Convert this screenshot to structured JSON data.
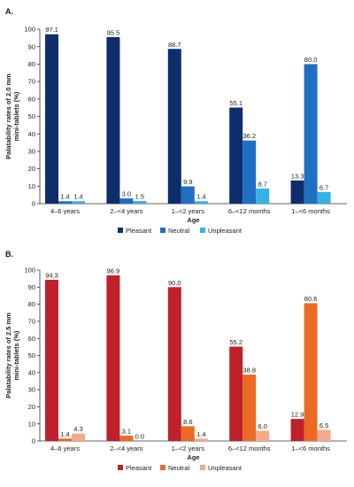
{
  "chart_data": [
    {
      "type": "bar",
      "panel_label": "A.",
      "categories": [
        "4–6 years",
        "2–<4 years",
        "1–<2 years",
        "6–<12 months",
        "1–<6 months"
      ],
      "series": [
        {
          "name": "Pleasant",
          "values": [
            97.1,
            95.5,
            88.7,
            55.1,
            13.3
          ],
          "color": "#0d2d6b"
        },
        {
          "name": "Neutral",
          "values": [
            1.4,
            3.0,
            9.9,
            36.2,
            80.0
          ],
          "color": "#1f6fc4"
        },
        {
          "name": "Unpleasant",
          "values": [
            1.4,
            1.5,
            1.4,
            8.7,
            6.7
          ],
          "color": "#35b1e6"
        }
      ],
      "value_labels": [
        [
          "97.1",
          "95.5",
          "88.7",
          "55.1",
          "13.3"
        ],
        [
          "1.4",
          "3.0",
          "9.9",
          "36.2",
          "80.0"
        ],
        [
          "1.4",
          "1.5",
          "1.4",
          "8.7",
          "6.7"
        ]
      ],
      "xlabel": "Age",
      "ylabel_lines": [
        "Palatability rates of 2.0 mm",
        "mini-tablets (%)"
      ],
      "ylim": [
        0,
        100
      ],
      "yticks": [
        "0",
        "10",
        "20",
        "30",
        "40",
        "50",
        "60",
        "70",
        "80",
        "90",
        "100"
      ],
      "grid": false,
      "legend_position": "bottom-center"
    },
    {
      "type": "bar",
      "panel_label": "B.",
      "categories": [
        "4–6 years",
        "2–<4 years",
        "1–<2 years",
        "6–<12 months",
        "1–<6 months"
      ],
      "series": [
        {
          "name": "Pleasant",
          "values": [
            94.3,
            96.9,
            90.0,
            55.2,
            12.9
          ],
          "color": "#c0202a"
        },
        {
          "name": "Neutral",
          "values": [
            1.4,
            3.1,
            8.6,
            38.8,
            80.6
          ],
          "color": "#ec6a23"
        },
        {
          "name": "Unpleasant",
          "values": [
            4.3,
            0.0,
            1.4,
            6.0,
            6.5
          ],
          "color": "#f5a98a"
        }
      ],
      "value_labels": [
        [
          "94.3",
          "96.9",
          "90.0",
          "55.2",
          "12.9"
        ],
        [
          "1.4",
          "3.1",
          "8.6",
          "38.8",
          "80.6"
        ],
        [
          "4.3",
          "0.0",
          "1.4",
          "6.0",
          "6.5"
        ]
      ],
      "xlabel": "Age",
      "ylabel_lines": [
        "Palatability rates of 2.5 mm",
        "mini-tablets (%)"
      ],
      "ylim": [
        0,
        100
      ],
      "yticks": [
        "0",
        "10",
        "20",
        "30",
        "40",
        "50",
        "60",
        "70",
        "80",
        "90",
        "100"
      ],
      "grid": false,
      "legend_position": "bottom-center"
    }
  ]
}
